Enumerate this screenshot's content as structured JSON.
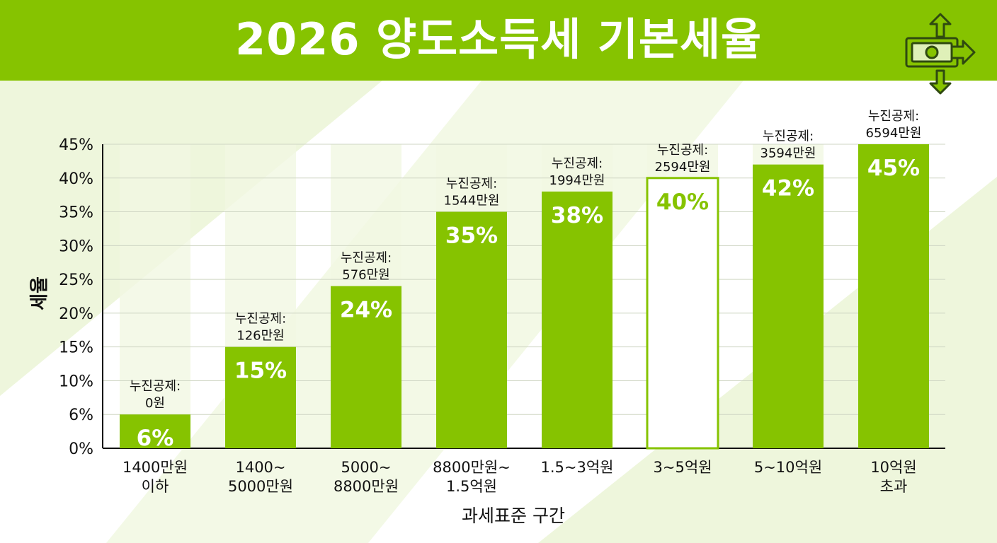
{
  "header": {
    "title": "2026 양도소득세 기본세율",
    "icon": "money-transfer-icon"
  },
  "colors": {
    "accent": "#86c300",
    "bar": "#86c300",
    "bar_outline_highlight": "#86c300",
    "background_tint": "#eef6dc",
    "text": "#111111"
  },
  "chart_data": {
    "type": "bar",
    "title": "2026 양도소득세 기본세율",
    "xlabel": "과세표준 구간",
    "ylabel": "세율",
    "ytick_labels": [
      "0%",
      "6%",
      "10%",
      "15%",
      "20%",
      "25%",
      "30%",
      "35%",
      "40%",
      "45%"
    ],
    "ylim": [
      0,
      45
    ],
    "grid": true,
    "categories": [
      [
        "1400만원",
        "이하"
      ],
      [
        "1400~",
        "5000만원"
      ],
      [
        "5000~",
        "8800만원"
      ],
      [
        "8800만원~",
        "1.5억원"
      ],
      [
        "1.5~3억원"
      ],
      [
        "3~5억원"
      ],
      [
        "5~10억원"
      ],
      [
        "10억원",
        "초과"
      ]
    ],
    "values": [
      6,
      15,
      24,
      35,
      38,
      40,
      42,
      45
    ],
    "value_labels": [
      "6%",
      "15%",
      "24%",
      "35%",
      "38%",
      "40%",
      "42%",
      "45%"
    ],
    "deduction_prefix": "누진공제:",
    "deductions": [
      "0원",
      "126만원",
      "576만원",
      "1544만원",
      "1994만원",
      "2594만원",
      "3594만원",
      "6594만원"
    ],
    "highlighted_index": 5
  }
}
